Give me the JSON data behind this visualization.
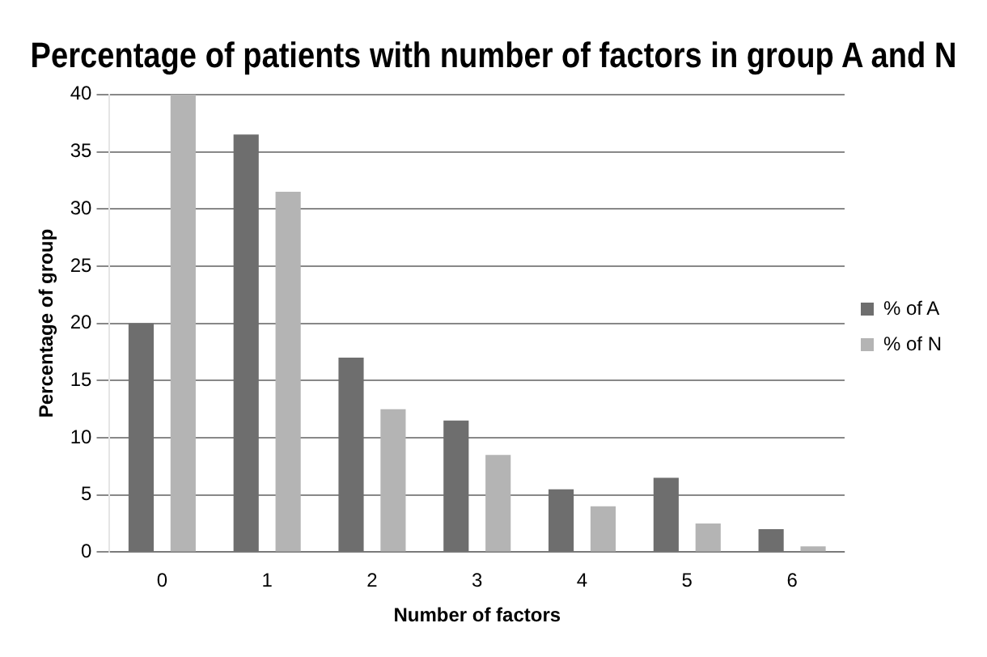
{
  "chart_data": {
    "type": "bar",
    "title": "Percentage of patients with number of factors in group A and N",
    "xlabel": "Number of factors",
    "ylabel": "Percentage of group",
    "categories": [
      "0",
      "1",
      "2",
      "3",
      "4",
      "5",
      "6"
    ],
    "series": [
      {
        "name": "% of A",
        "color": "#6e6e6e",
        "values": [
          20,
          36.5,
          17,
          11.5,
          5.5,
          6.5,
          2
        ]
      },
      {
        "name": "% of N",
        "color": "#b4b4b4",
        "values": [
          40,
          31.5,
          12.5,
          8.5,
          4,
          2.5,
          0.5
        ]
      }
    ],
    "ylim": [
      0,
      40
    ],
    "yticks": [
      0,
      5,
      10,
      15,
      20,
      25,
      30,
      35,
      40
    ],
    "grid": "y",
    "legend": "right"
  }
}
